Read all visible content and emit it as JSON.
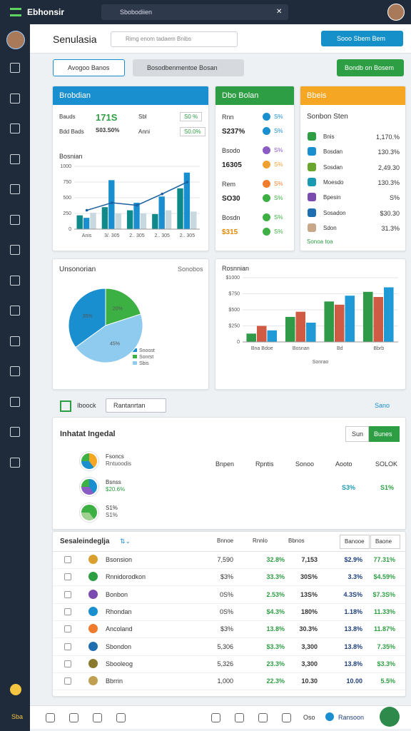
{
  "topbar": {
    "app": "Ebhonsir",
    "search": "Sbobodiien"
  },
  "header": {
    "title": "Senulasia",
    "search": "Rimg enom tadaem Bnibs",
    "button": "Sooo Sbem Bem"
  },
  "toolbar": {
    "tabs": [
      "Avogoo Banos",
      "Bosodbenmentoe Bosan"
    ],
    "button": "Bondb on Bosem"
  },
  "card1": {
    "title": "Brobdian",
    "kpis": [
      {
        "label": "Bauds",
        "value": "171S",
        "sub": "Sbl",
        "pill": "S0 %"
      },
      {
        "label": "Bdd Bads",
        "value": "S03.S0%",
        "sub": "Anni",
        "pill": "S0.0%"
      }
    ]
  },
  "card2": {
    "title": "Dbo Bolan",
    "items": [
      {
        "label": "Rnn",
        "value": "S237%",
        "badges": [
          {
            "text": "S%",
            "color": "#1a8fd0"
          },
          {
            "text": "S%",
            "color": "#1a8fd0"
          }
        ]
      },
      {
        "label": "Bsodo",
        "value": "16305",
        "badges": [
          {
            "text": "S%",
            "color": "#8a5cc4"
          },
          {
            "text": "S%",
            "color": "#f0a030"
          }
        ]
      },
      {
        "label": "Rem",
        "value": "SO30",
        "badges": [
          {
            "text": "S%",
            "color": "#ef7d2d"
          },
          {
            "text": "S%",
            "color": "#3cb043"
          }
        ]
      },
      {
        "label": "Bosdn",
        "value": "$315",
        "badges": [
          {
            "text": "S%",
            "color": "#3cb043"
          },
          {
            "text": "S%",
            "color": "#3cb043"
          }
        ]
      }
    ]
  },
  "card3": {
    "title": "Bbeis",
    "subtitle": "Sonbon Sten",
    "link": "Sonoa toa",
    "items": [
      {
        "label": "Bnis",
        "value": "1,170.%",
        "color": "#2e9e44"
      },
      {
        "label": "Bosdan",
        "value": "130.3%",
        "color": "#1a8fd0"
      },
      {
        "label": "Sosdan",
        "value": "2,49.30",
        "color": "#6aa62e"
      },
      {
        "label": "Moesdo",
        "value": "130.3%",
        "color": "#1a9ab0"
      },
      {
        "label": "Bpesin",
        "value": "S%",
        "color": "#7a4cb0"
      },
      {
        "label": "Sosadon",
        "value": "$30.30",
        "color": "#1f6fb0"
      },
      {
        "label": "Sdon",
        "value": "31.3%",
        "color": "#c9a88a"
      }
    ]
  },
  "pie_panel": {
    "action": "Sonobos"
  },
  "filter": {
    "label": "Iboock",
    "select": "Rantanrtan",
    "link": "Sano"
  },
  "report": {
    "title": "Inhatat Ingedal",
    "buttons": [
      "Sun",
      "Bunes"
    ],
    "columns": [
      "Bnpen",
      "Rpntis",
      "Sonoo",
      "Aooto",
      "SOLOK"
    ],
    "rows": [
      {
        "label": "Fsoncs",
        "sub": "Rntuoodis"
      },
      {
        "label": "Bsnss",
        "sub": "$20.6%"
      },
      {
        "label": "S1%",
        "sub": "S1%"
      }
    ],
    "figures": [
      "S3%",
      "S1%"
    ]
  },
  "table": {
    "title": "Sesaleindeglja",
    "columns": [
      "Bnnoe",
      "Rnnlo",
      "Bbnos"
    ],
    "buttons": [
      "Banooe",
      "Baone"
    ],
    "column_colors": [
      "#333333",
      "#2e9e44",
      "#333333",
      "#1f3f7a",
      "#2e9e44"
    ],
    "rows": [
      [
        "Bsonsion",
        "7,590",
        "32.8%",
        "7,153",
        "$2.9%",
        "77.31%"
      ],
      [
        "Rnnidorodkon",
        "$3%",
        "33.3%",
        "30S%",
        "3.3%",
        "$4.59%"
      ],
      [
        "Bonbon",
        "0S%",
        "2.53%",
        "13S%",
        "4.3S%",
        "$7.3S%"
      ],
      [
        "Rhondan",
        "0S%",
        "$4.3%",
        "180%",
        "1.18%",
        "11.33%"
      ],
      [
        "Ancoland",
        "$3%",
        "13.8%",
        "30.3%",
        "13.8%",
        "11.87%"
      ],
      [
        "Sbondon",
        "5,306",
        "$3.3%",
        "3,300",
        "13.8%",
        "7.35%"
      ],
      [
        "Sbooleog",
        "5,326",
        "23.3%",
        "3,300",
        "13.8%",
        "$3.3%"
      ],
      [
        "Bbrrin",
        "1,000",
        "22.3%",
        "10.30",
        "10.00",
        "5.5%"
      ]
    ]
  },
  "bottombar": {
    "left": "Sba",
    "items": [
      "Oso",
      "Ransoon"
    ]
  },
  "chart_data": [
    {
      "type": "bar",
      "title": "Bosnian",
      "categories": [
        "Anis",
        "3/. 305",
        "2.. 305",
        "2.. 305",
        "2.. 305"
      ],
      "ylim": [
        0,
        1000
      ],
      "yticks": [
        0,
        250,
        500,
        750,
        1000
      ],
      "series": [
        {
          "color": "#0f8a8a",
          "values": [
            220,
            350,
            300,
            240,
            650
          ]
        },
        {
          "color": "#1a8fd0",
          "values": [
            180,
            780,
            420,
            520,
            900
          ]
        },
        {
          "color": "#c8d8df",
          "values": [
            260,
            250,
            250,
            300,
            280
          ]
        },
        {
          "color": "#1a5fa0",
          "style": "line",
          "values": [
            300,
            420,
            380,
            560,
            750
          ]
        }
      ]
    },
    {
      "type": "pie",
      "title": "Unsonorian",
      "categories": [
        "Snoost",
        "Sonrst",
        "Sbis"
      ],
      "values": [
        35,
        20,
        45
      ],
      "value_labels": [
        "35%",
        "20%",
        "45%"
      ],
      "colors": [
        "#1a8fd0",
        "#3cb043",
        "#8ecbee"
      ]
    },
    {
      "type": "bar",
      "title": "Rosnnian",
      "xlabel": "Sonrao",
      "categories": [
        "Bna Bdoe",
        "Bosnan",
        "Bd",
        "Bbrb"
      ],
      "ylim": [
        0,
        1000
      ],
      "yticks": [
        0,
        {
          "value": 250,
          "label": "$250"
        },
        {
          "value": 500,
          "label": "$500"
        },
        {
          "value": 750,
          "label": "$750"
        },
        {
          "value": 1000,
          "label": "$1000"
        }
      ],
      "series": [
        {
          "color": "#2f9a48",
          "values": [
            130,
            390,
            630,
            780
          ]
        },
        {
          "color": "#cf5b45",
          "values": [
            250,
            470,
            580,
            700
          ]
        },
        {
          "color": "#1f9ad6",
          "values": [
            180,
            300,
            720,
            850
          ]
        }
      ]
    }
  ]
}
